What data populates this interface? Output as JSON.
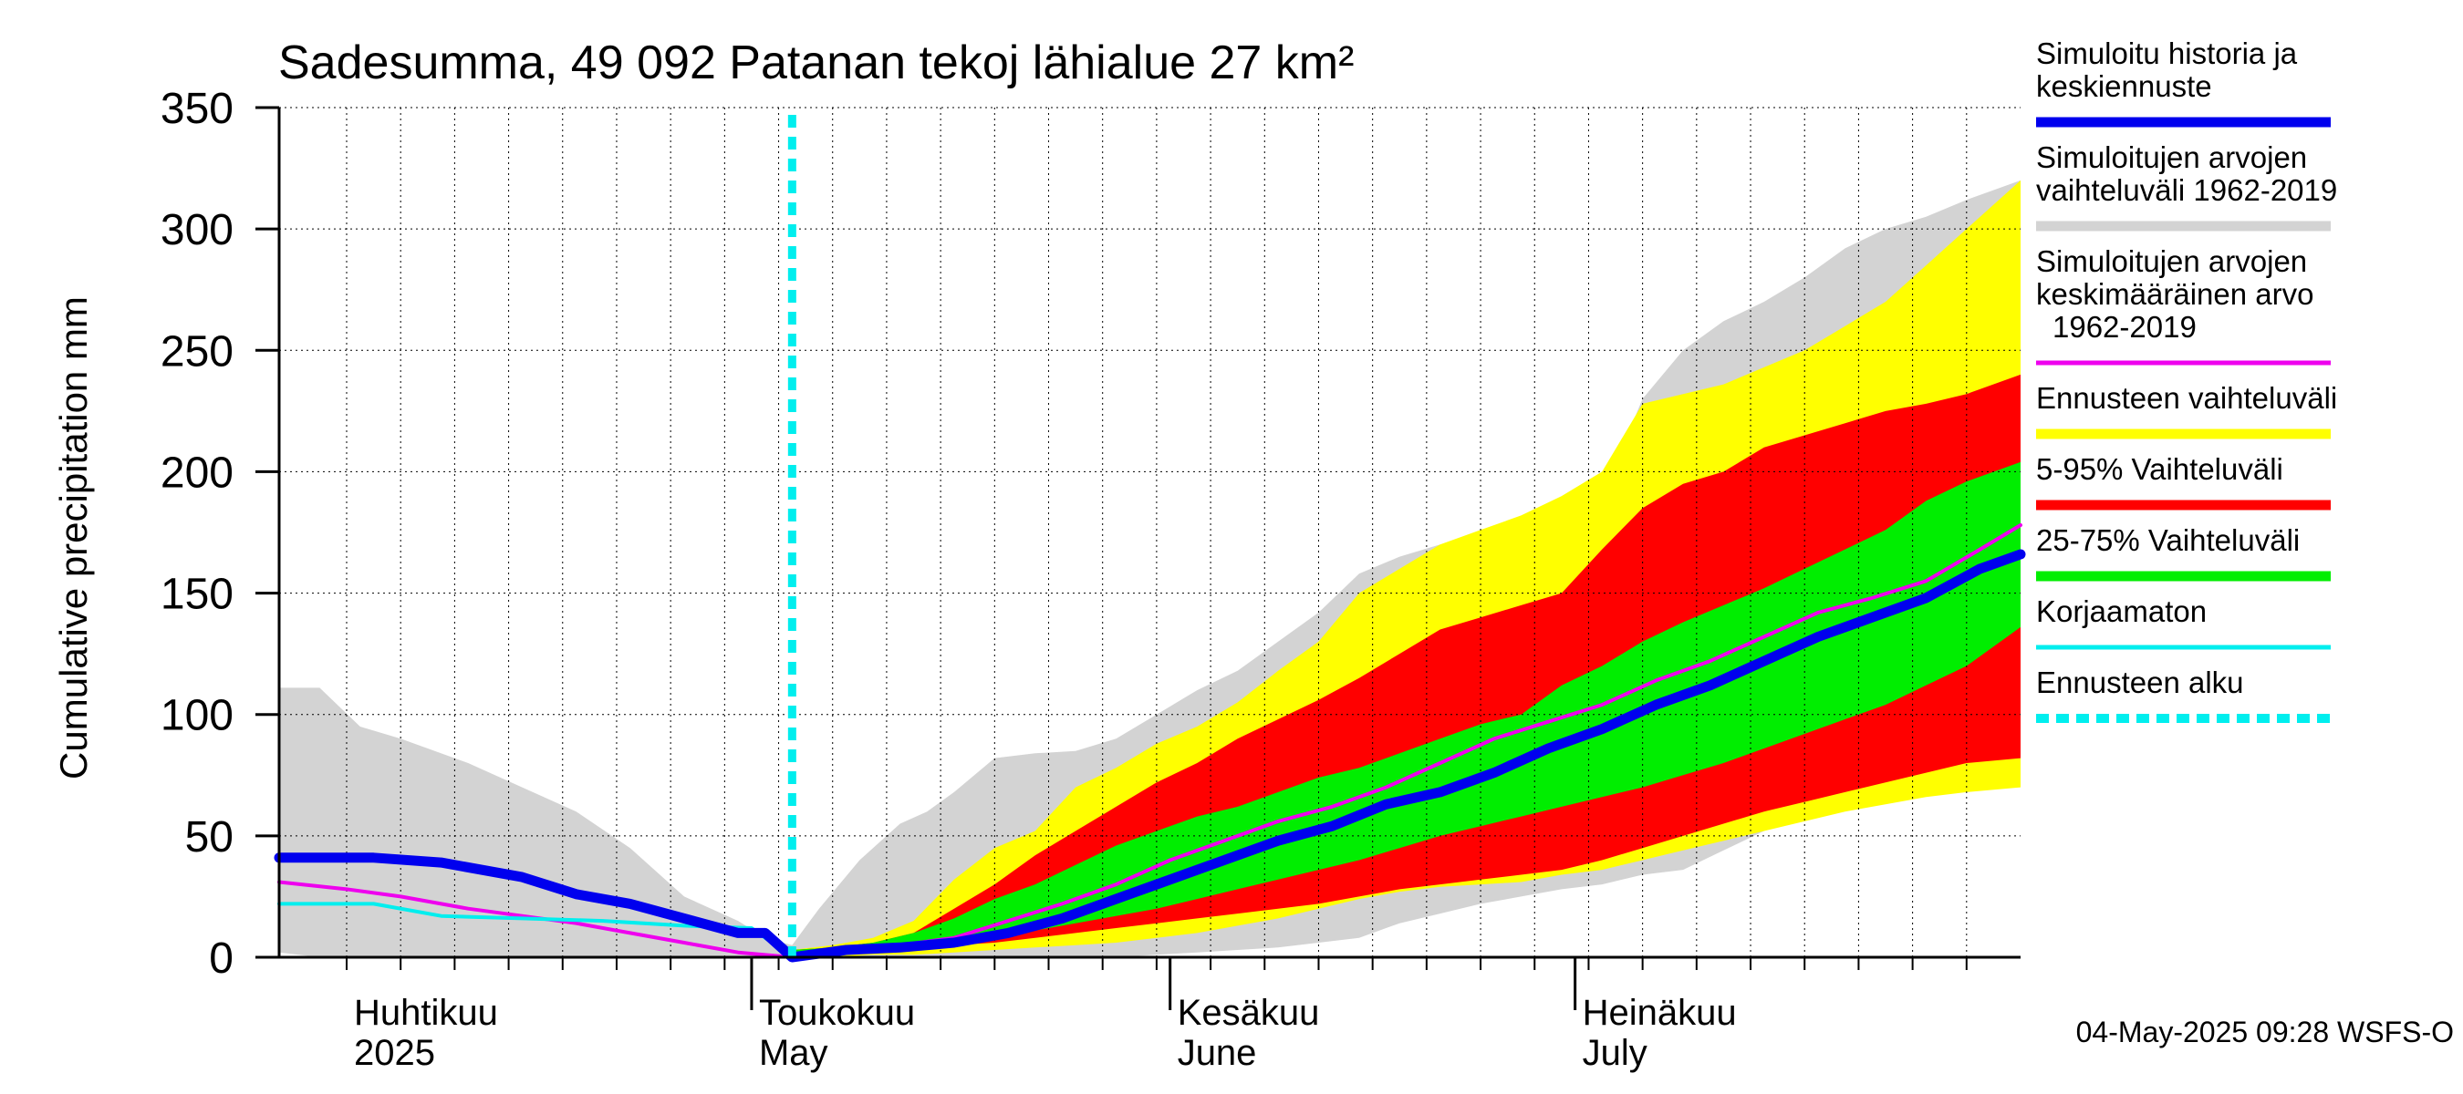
{
  "chart_data": {
    "type": "area",
    "title": "Sadesumma, 49 092 Patanan tekoj lähialue 27 km²",
    "ylabel": "Cumulative precipitation   mm",
    "xlabel": "",
    "ylim": [
      0,
      350
    ],
    "yticks": [
      0,
      50,
      100,
      150,
      200,
      250,
      300,
      350
    ],
    "xlim": [
      "2025-03-27",
      "2025-08-03"
    ],
    "grid": true,
    "legend_position": "right",
    "month_labels": [
      {
        "date": "2025-04-01",
        "fi": "Huhtikuu",
        "en": "2025"
      },
      {
        "date": "2025-05-01",
        "fi": "Toukokuu",
        "en": "May"
      },
      {
        "date": "2025-06-01",
        "fi": "Kesäkuu",
        "en": "June"
      },
      {
        "date": "2025-07-01",
        "fi": "Heinäkuu",
        "en": "July"
      }
    ],
    "forecast_start": "2025-05-04",
    "timestamp": "04-May-2025 09:28 WSFS-O",
    "colors": {
      "history": "#0000ee",
      "sim_range": "#d3d3d3",
      "sim_mean": "#ee00ee",
      "forecast_range": "#ffff00",
      "p5_95": "#ff0000",
      "p25_75": "#00ee00",
      "uncorrected": "#00eeee",
      "forecast_start": "#00eeee"
    },
    "legend": [
      {
        "label": "Simuloitu historia ja keskiennuste",
        "lines": [
          "Simuloitu historia ja",
          "keskiennuste"
        ],
        "color": "#0000ee",
        "style": "solid"
      },
      {
        "label": "Simuloitujen arvojen vaihteluväli 1962-2019",
        "lines": [
          "Simuloitujen arvojen",
          "vaihteluväli 1962-2019"
        ],
        "color": "#d3d3d3",
        "style": "solid"
      },
      {
        "label": "Simuloitujen arvojen keskimääräinen arvo 1962-2019",
        "lines": [
          "Simuloitujen arvojen",
          "keskimääräinen arvo",
          "1962-2019"
        ],
        "color": "#ee00ee",
        "style": "thin"
      },
      {
        "label": "Ennusteen vaihteluväli",
        "lines": [
          "Ennusteen vaihteluväli"
        ],
        "color": "#ffff00",
        "style": "solid"
      },
      {
        "label": "5-95% Vaihteluväli",
        "lines": [
          "5-95% Vaihteluväli"
        ],
        "color": "#ff0000",
        "style": "solid"
      },
      {
        "label": "25-75% Vaihteluväli",
        "lines": [
          "25-75% Vaihteluväli"
        ],
        "color": "#00ee00",
        "style": "solid"
      },
      {
        "label": "Korjaamaton",
        "lines": [
          "Korjaamaton"
        ],
        "color": "#00eeee",
        "style": "thin"
      },
      {
        "label": "Ennusteen alku",
        "lines": [
          "Ennusteen alku"
        ],
        "color": "#00eeee",
        "style": "dashed"
      }
    ],
    "series": [
      {
        "name": "Simuloitujen arvojen vaihteluväli 1962-2019",
        "kind": "band",
        "x": [
          "2025-03-27",
          "2025-03-30",
          "2025-04-02",
          "2025-04-05",
          "2025-04-10",
          "2025-04-14",
          "2025-04-18",
          "2025-04-22",
          "2025-04-26",
          "2025-04-30",
          "2025-05-02",
          "2025-05-04",
          "2025-05-06",
          "2025-05-09",
          "2025-05-12",
          "2025-05-14",
          "2025-05-16",
          "2025-05-19",
          "2025-05-22",
          "2025-05-25",
          "2025-05-28",
          "2025-05-31",
          "2025-06-03",
          "2025-06-06",
          "2025-06-09",
          "2025-06-12",
          "2025-06-15",
          "2025-06-18",
          "2025-06-21",
          "2025-06-24",
          "2025-06-27",
          "2025-06-30",
          "2025-07-03",
          "2025-07-06",
          "2025-07-09",
          "2025-07-12",
          "2025-07-15",
          "2025-07-18",
          "2025-07-21",
          "2025-07-24",
          "2025-07-27",
          "2025-07-30",
          "2025-08-03"
        ],
        "lower": [
          2,
          0,
          0,
          0,
          0,
          0,
          0,
          0,
          0,
          0,
          0,
          0,
          0,
          0,
          0,
          0,
          0,
          0,
          0,
          0,
          0,
          1,
          2,
          3,
          4,
          6,
          8,
          14,
          18,
          22,
          25,
          28,
          30,
          34,
          36,
          44,
          52,
          60,
          66,
          72,
          78,
          80,
          80
        ],
        "upper": [
          111,
          111,
          95,
          90,
          80,
          70,
          60,
          45,
          25,
          15,
          8,
          5,
          20,
          40,
          55,
          60,
          68,
          82,
          84,
          85,
          90,
          100,
          110,
          118,
          130,
          142,
          158,
          165,
          170,
          172,
          176,
          180,
          190,
          230,
          250,
          262,
          270,
          280,
          292,
          300,
          305,
          312,
          320
        ]
      },
      {
        "name": "Ennusteen vaihteluväli",
        "kind": "band",
        "x": [
          "2025-05-04",
          "2025-05-07",
          "2025-05-10",
          "2025-05-13",
          "2025-05-16",
          "2025-05-19",
          "2025-05-22",
          "2025-05-25",
          "2025-05-28",
          "2025-05-31",
          "2025-06-03",
          "2025-06-06",
          "2025-06-09",
          "2025-06-12",
          "2025-06-15",
          "2025-06-18",
          "2025-06-21",
          "2025-06-24",
          "2025-06-27",
          "2025-06-30",
          "2025-07-03",
          "2025-07-06",
          "2025-07-09",
          "2025-07-12",
          "2025-07-15",
          "2025-07-18",
          "2025-07-21",
          "2025-07-24",
          "2025-07-27",
          "2025-07-30",
          "2025-08-03"
        ],
        "lower": [
          0,
          0,
          1,
          1,
          2,
          3,
          4,
          5,
          6,
          8,
          10,
          13,
          16,
          20,
          24,
          27,
          29,
          30,
          31,
          34,
          36,
          40,
          44,
          48,
          52,
          56,
          60,
          63,
          66,
          68,
          70
        ],
        "upper": [
          3,
          5,
          8,
          15,
          32,
          45,
          52,
          70,
          78,
          88,
          95,
          105,
          118,
          130,
          150,
          160,
          170,
          176,
          182,
          190,
          200,
          228,
          232,
          236,
          243,
          250,
          260,
          270,
          285,
          300,
          320
        ]
      },
      {
        "name": "5-95% Vaihteluväli",
        "kind": "band",
        "x": [
          "2025-05-04",
          "2025-05-07",
          "2025-05-10",
          "2025-05-13",
          "2025-05-16",
          "2025-05-19",
          "2025-05-22",
          "2025-05-25",
          "2025-05-28",
          "2025-05-31",
          "2025-06-03",
          "2025-06-06",
          "2025-06-09",
          "2025-06-12",
          "2025-06-15",
          "2025-06-18",
          "2025-06-21",
          "2025-06-24",
          "2025-06-27",
          "2025-06-30",
          "2025-07-03",
          "2025-07-06",
          "2025-07-09",
          "2025-07-12",
          "2025-07-15",
          "2025-07-18",
          "2025-07-21",
          "2025-07-24",
          "2025-07-27",
          "2025-07-30",
          "2025-08-03"
        ],
        "lower": [
          2,
          3,
          4,
          4,
          5,
          6,
          8,
          10,
          12,
          14,
          16,
          18,
          20,
          22,
          25,
          28,
          30,
          32,
          34,
          36,
          40,
          45,
          50,
          55,
          60,
          64,
          68,
          72,
          76,
          80,
          82
        ],
        "upper": [
          3,
          4,
          6,
          10,
          20,
          30,
          42,
          52,
          62,
          72,
          80,
          90,
          98,
          106,
          115,
          125,
          135,
          140,
          145,
          150,
          168,
          185,
          195,
          200,
          210,
          215,
          220,
          225,
          228,
          232,
          240
        ]
      },
      {
        "name": "25-75% Vaihteluväli",
        "kind": "band",
        "x": [
          "2025-05-04",
          "2025-05-07",
          "2025-05-10",
          "2025-05-13",
          "2025-05-16",
          "2025-05-19",
          "2025-05-22",
          "2025-05-25",
          "2025-05-28",
          "2025-05-31",
          "2025-06-03",
          "2025-06-06",
          "2025-06-09",
          "2025-06-12",
          "2025-06-15",
          "2025-06-18",
          "2025-06-21",
          "2025-06-24",
          "2025-06-27",
          "2025-06-30",
          "2025-07-03",
          "2025-07-06",
          "2025-07-09",
          "2025-07-12",
          "2025-07-15",
          "2025-07-18",
          "2025-07-21",
          "2025-07-24",
          "2025-07-27",
          "2025-07-30",
          "2025-08-03"
        ],
        "lower": [
          2,
          3,
          4,
          5,
          6,
          8,
          11,
          14,
          17,
          20,
          24,
          28,
          32,
          36,
          40,
          45,
          50,
          54,
          58,
          62,
          66,
          70,
          75,
          80,
          86,
          92,
          98,
          104,
          112,
          120,
          136
        ],
        "upper": [
          3,
          4,
          6,
          10,
          16,
          24,
          30,
          38,
          46,
          52,
          58,
          62,
          68,
          74,
          78,
          84,
          90,
          96,
          100,
          112,
          120,
          130,
          138,
          145,
          152,
          160,
          168,
          176,
          188,
          196,
          204
        ]
      },
      {
        "name": "Simuloitujen arvojen keskimääräinen arvo 1962-2019",
        "kind": "line",
        "x": [
          "2025-03-27",
          "2025-04-01",
          "2025-04-05",
          "2025-04-10",
          "2025-04-14",
          "2025-04-18",
          "2025-04-22",
          "2025-04-26",
          "2025-04-30",
          "2025-05-04",
          "2025-05-08",
          "2025-05-12",
          "2025-05-16",
          "2025-05-20",
          "2025-05-24",
          "2025-05-28",
          "2025-06-01",
          "2025-06-05",
          "2025-06-09",
          "2025-06-13",
          "2025-06-17",
          "2025-06-21",
          "2025-06-25",
          "2025-06-29",
          "2025-07-03",
          "2025-07-07",
          "2025-07-11",
          "2025-07-15",
          "2025-07-19",
          "2025-07-23",
          "2025-07-27",
          "2025-07-31",
          "2025-08-03"
        ],
        "values": [
          31,
          28,
          25,
          20,
          17,
          14,
          10,
          6,
          2,
          0,
          3,
          5,
          8,
          15,
          22,
          30,
          40,
          48,
          56,
          62,
          70,
          80,
          90,
          97,
          104,
          114,
          122,
          132,
          142,
          148,
          155,
          168,
          178
        ]
      },
      {
        "name": "Korjaamaton",
        "kind": "line",
        "x": [
          "2025-03-27",
          "2025-04-03",
          "2025-04-08",
          "2025-04-14",
          "2025-04-20",
          "2025-04-26",
          "2025-05-01",
          "2025-05-04"
        ],
        "values": [
          22,
          22,
          17,
          16,
          15,
          13,
          12,
          0
        ]
      },
      {
        "name": "Simuloitu historia ja keskiennuste",
        "kind": "line",
        "x": [
          "2025-03-27",
          "2025-04-03",
          "2025-04-08",
          "2025-04-14",
          "2025-04-18",
          "2025-04-22",
          "2025-04-26",
          "2025-04-30",
          "2025-05-02",
          "2025-05-04",
          "2025-05-08",
          "2025-05-12",
          "2025-05-16",
          "2025-05-20",
          "2025-05-24",
          "2025-05-28",
          "2025-06-01",
          "2025-06-05",
          "2025-06-09",
          "2025-06-13",
          "2025-06-17",
          "2025-06-21",
          "2025-06-25",
          "2025-06-29",
          "2025-07-03",
          "2025-07-07",
          "2025-07-11",
          "2025-07-15",
          "2025-07-19",
          "2025-07-23",
          "2025-07-27",
          "2025-07-31",
          "2025-08-03"
        ],
        "values": [
          41,
          41,
          39,
          33,
          26,
          22,
          16,
          10,
          10,
          0,
          3,
          4,
          6,
          10,
          16,
          24,
          32,
          40,
          48,
          54,
          63,
          68,
          76,
          86,
          94,
          104,
          112,
          122,
          132,
          140,
          148,
          160,
          166
        ]
      }
    ]
  }
}
